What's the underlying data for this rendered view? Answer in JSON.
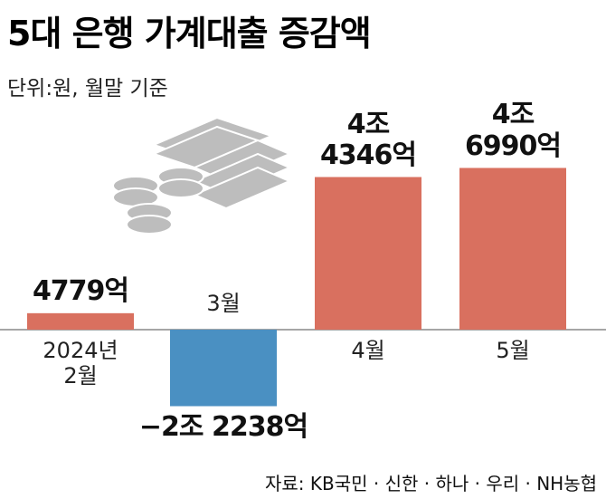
{
  "chart_data": {
    "type": "bar",
    "title": "5대 은행 가계대출 증감액",
    "subtitle": "단위:원, 월말 기준",
    "source": "자료: KB국민 · 신한 · 하나 · 우리 · NH농협",
    "categories": [
      "2024년\n2월",
      "3월",
      "4월",
      "5월"
    ],
    "values": [
      4779,
      -22238,
      44346,
      46990
    ],
    "value_labels": [
      "4779억",
      "−2조 2238억",
      "4조\n4346억",
      "4조\n6990억"
    ],
    "positive_color": "#d9705f",
    "negative_color": "#4a90c2",
    "ylim": [
      -30000,
      55000
    ]
  }
}
